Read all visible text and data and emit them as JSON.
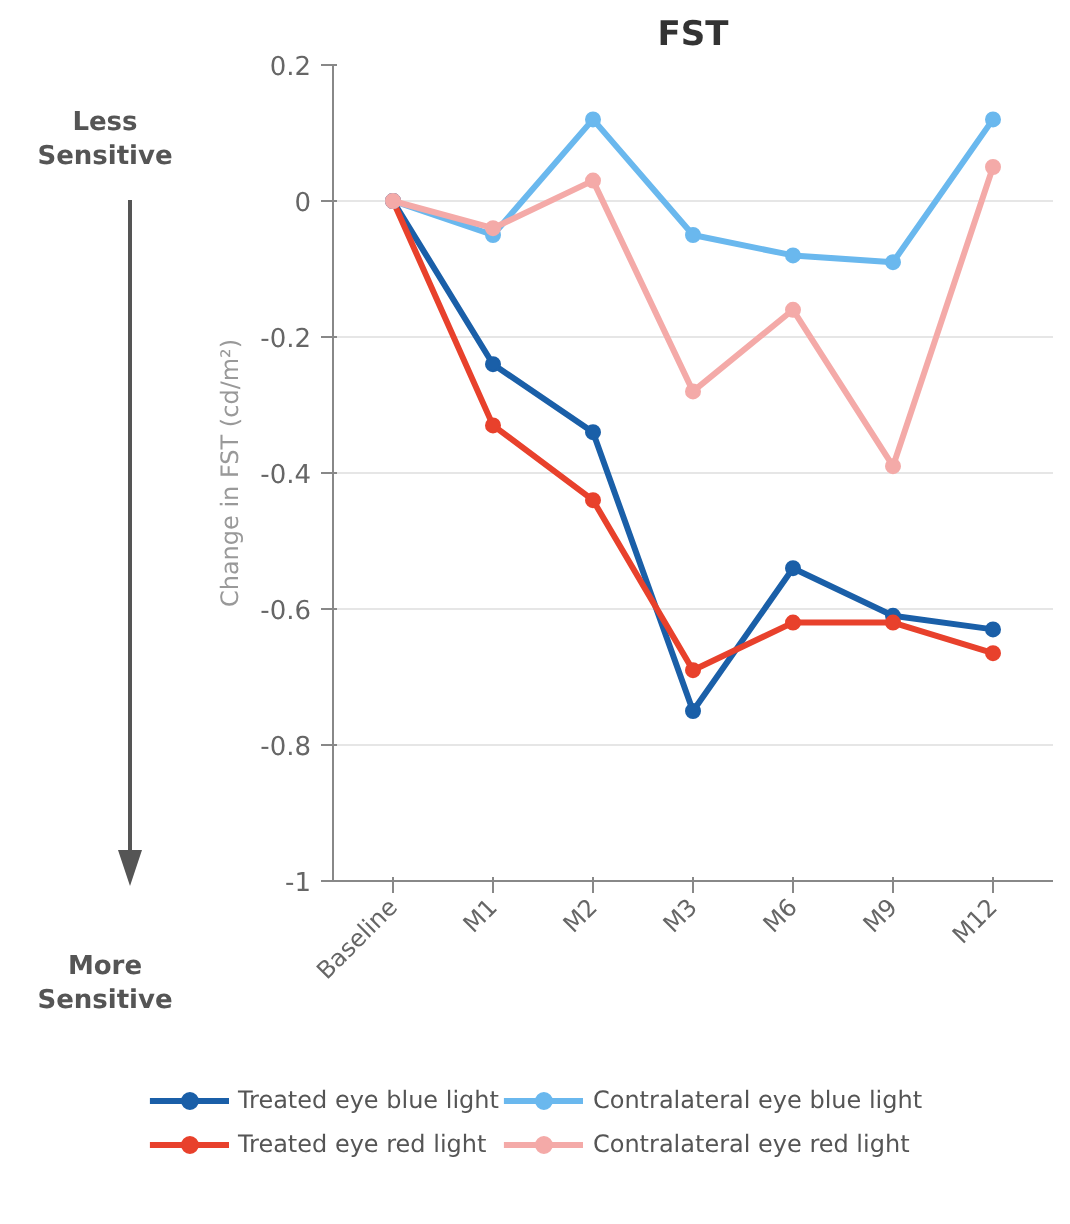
{
  "chart_data": {
    "type": "line",
    "title": "FST",
    "ylabel": "Change in FST (cd/m²)",
    "categories": [
      "Baseline",
      "M1",
      "M2",
      "M3",
      "M6",
      "M9",
      "M12"
    ],
    "series": [
      {
        "name": "Treated eye blue light",
        "color": "#1a5fa8",
        "values": [
          0,
          -0.24,
          -0.34,
          -0.75,
          -0.54,
          -0.61,
          -0.63
        ]
      },
      {
        "name": "Treated eye red light",
        "color": "#e8412c",
        "values": [
          0,
          -0.33,
          -0.44,
          -0.69,
          -0.62,
          -0.62,
          -0.665
        ]
      },
      {
        "name": "Contralateral eye blue light",
        "color": "#6ab8ee",
        "values": [
          0,
          -0.05,
          0.12,
          -0.05,
          -0.08,
          -0.09,
          0.12
        ]
      },
      {
        "name": "Contralateral eye red light",
        "color": "#f4aaa8",
        "values": [
          0,
          -0.04,
          0.03,
          -0.28,
          -0.16,
          -0.39,
          0.05
        ]
      }
    ],
    "ylim": [
      -1,
      0.2
    ],
    "yticks": [
      -1,
      -0.8,
      -0.6,
      -0.4,
      -0.2,
      0,
      0.2
    ],
    "grid": "y",
    "legend": "bottom",
    "marker": "circle",
    "line_style": "solid",
    "annotations": [
      "Less Sensitive",
      "More Sensitive"
    ]
  }
}
